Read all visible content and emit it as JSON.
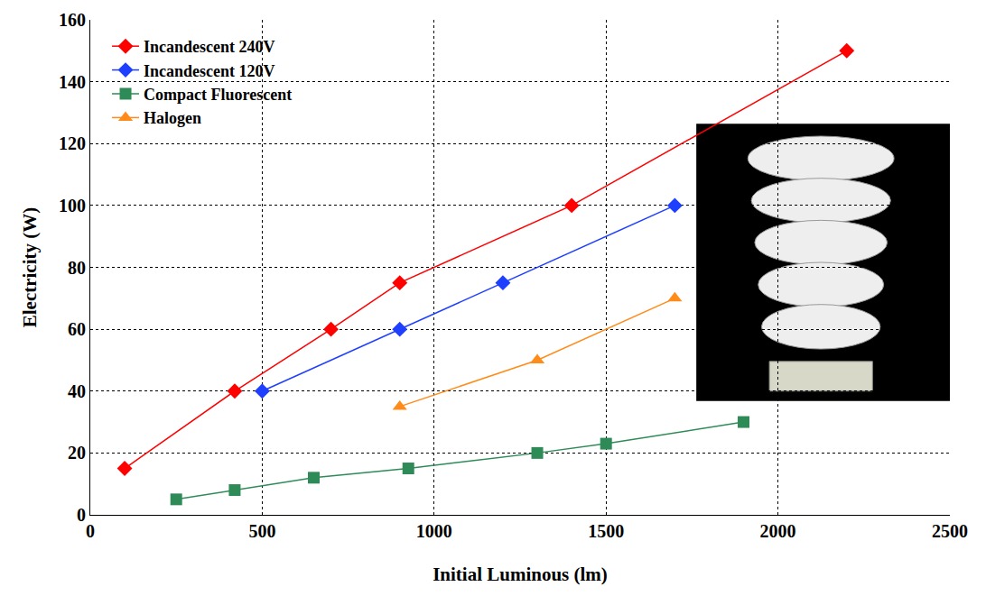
{
  "chart_data": {
    "type": "line",
    "x_label": "Initial Luminous (lm)",
    "y_label": "Electricity (W)",
    "xlim": [
      0,
      2500
    ],
    "xticks": [
      0,
      500,
      1000,
      1500,
      2000,
      2500
    ],
    "ylim": [
      0,
      160
    ],
    "yticks": [
      0,
      20,
      40,
      60,
      80,
      100,
      120,
      140,
      160
    ],
    "grid": true,
    "legend": "top left",
    "series": [
      {
        "name": "Incandescent 240V",
        "color": "#ff0000",
        "marker": "diamond",
        "x": [
          100,
          420,
          700,
          900,
          1400,
          2200
        ],
        "values": [
          15,
          40,
          60,
          75,
          100,
          150
        ]
      },
      {
        "name": "Incandescent 120V",
        "color": "#1f3fff",
        "marker": "diamond",
        "x": [
          500,
          900,
          1200,
          1700
        ],
        "values": [
          40,
          60,
          75,
          100
        ]
      },
      {
        "name": "Compact Fluorescent",
        "color": "#2e8b57",
        "marker": "square",
        "x": [
          250,
          420,
          650,
          925,
          1300,
          1500,
          1900
        ],
        "values": [
          5,
          8,
          12,
          15,
          20,
          23,
          30
        ]
      },
      {
        "name": "Halogen",
        "color": "#ff8c1a",
        "marker": "triangle-up",
        "x": [
          900,
          1300,
          1700
        ],
        "values": [
          35,
          50,
          70
        ]
      }
    ]
  }
}
